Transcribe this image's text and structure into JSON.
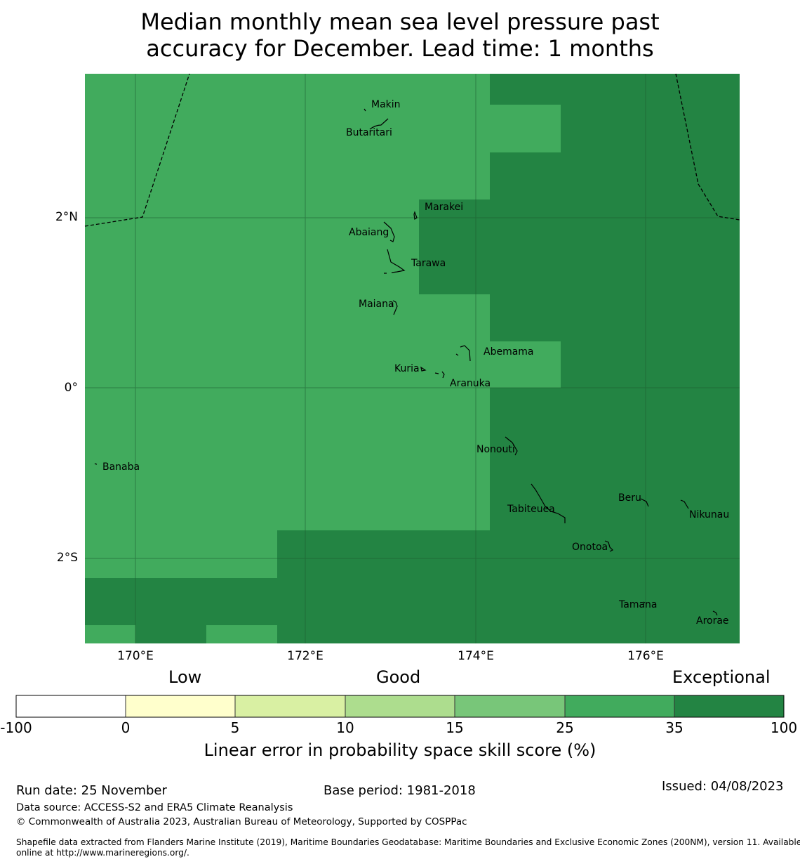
{
  "title": {
    "line1": "Median monthly mean sea level pressure past",
    "line2": "accuracy for December. Lead time: 1 months"
  },
  "map": {
    "lat_labels": [
      "2°N",
      "0°",
      "2°S"
    ],
    "lon_labels": [
      "170°E",
      "172°E",
      "174°E",
      "176°E"
    ],
    "places": [
      "Makin",
      "Butaritari",
      "Marakei",
      "Abaiang",
      "Tarawa",
      "Maiana",
      "Abemama",
      "Kuria",
      "Aranuka",
      "Nonouti",
      "Banaba",
      "Beru",
      "Tabiteuea",
      "Nikunau",
      "Onotoa",
      "Tamana",
      "Arorae"
    ],
    "category_colors": {
      "25-35": "#41ab5d",
      "35-100": "#238443"
    }
  },
  "colorbar": {
    "categories": [
      "Low",
      "Good",
      "Exceptional"
    ],
    "ticks": [
      "-100",
      "0",
      "5",
      "10",
      "15",
      "25",
      "35",
      "100"
    ],
    "colors": [
      "#ffffff",
      "#ffffcc",
      "#d9f0a3",
      "#addd8e",
      "#78c679",
      "#41ab5d",
      "#238443"
    ],
    "label": "Linear error in probability space skill score (%)"
  },
  "footer": {
    "run_date": "Run date: 25 November",
    "base_period": "Base period: 1981-2018",
    "issued": "Issued: 04/08/2023",
    "data_source": "Data source: ACCESS-S2 and ERA5 Climate Reanalysis",
    "copyright": "© Commonwealth of Australia 2023, Australian Bureau of Meteorology, Supported by COSPPac",
    "shapefile_line1": "Shapefile data extracted from Flanders Marine Institute (2019), Maritime Boundaries Geodatabase: Maritime Boundaries and Exclusive Economic Zones (200NM), version 11. Available",
    "shapefile_line2": "online at http://www.marineregions.org/."
  }
}
